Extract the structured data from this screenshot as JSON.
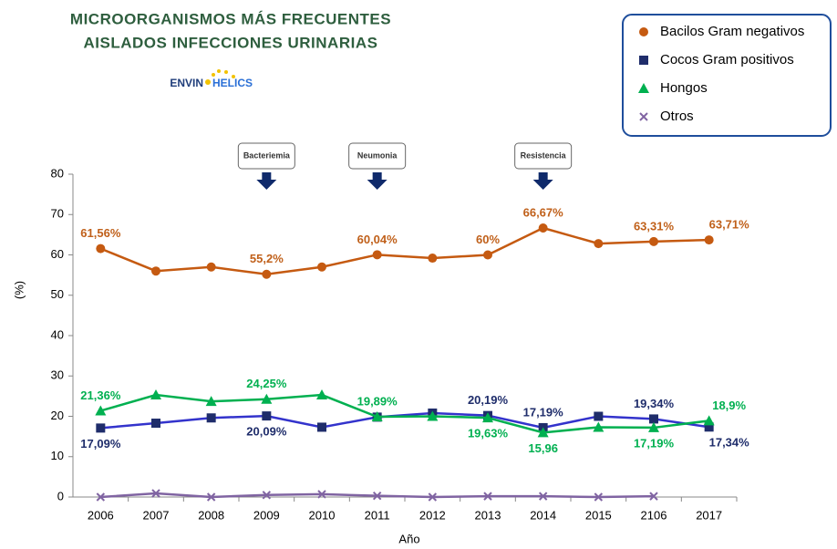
{
  "chart_data": {
    "type": "line",
    "title_lines": [
      "MICROORGANISMOS MÁS FRECUENTES",
      "AISLADOS INFECCIONES URINARIAS"
    ],
    "logo": [
      "ENVIN",
      "HELICS"
    ],
    "x_label": "Año",
    "y_label": "(%)",
    "categories": [
      "2006",
      "2007",
      "2008",
      "2009",
      "2010",
      "2011",
      "2012",
      "2013",
      "2014",
      "2015",
      "2106",
      "2017"
    ],
    "ylim": [
      0,
      80
    ],
    "yticks": [
      0,
      10,
      20,
      30,
      40,
      50,
      60,
      70,
      80
    ],
    "legend": "top-right",
    "annotations": [
      {
        "label": "Bacteriemia",
        "x": "2009"
      },
      {
        "label": "Neumonia",
        "x": "2011"
      },
      {
        "label": "Resistencia",
        "x": "2014"
      }
    ],
    "series": [
      {
        "name": "Bacilos Gram negativos",
        "color": "#c55a11",
        "marker": "circle",
        "values": [
          61.56,
          56,
          57,
          55.2,
          57,
          60.04,
          59.2,
          60,
          66.67,
          62.8,
          63.31,
          63.71
        ],
        "value_labels": [
          "61,56%",
          null,
          null,
          "55,2%",
          null,
          "60,04%",
          null,
          "60%",
          "66,67%",
          null,
          "63,31%",
          "63,71%"
        ]
      },
      {
        "name": "Cocos Gram positivos",
        "color": "#3333cc",
        "marker": "square",
        "values": [
          17.09,
          18.3,
          19.6,
          20.09,
          17.3,
          19.8,
          20.8,
          20.19,
          17.19,
          20,
          19.34,
          17.34
        ],
        "value_labels": [
          "17,09%",
          null,
          null,
          "20,09%",
          null,
          null,
          null,
          "20,19%",
          "17,19%",
          null,
          "19,34%",
          "17,34%"
        ]
      },
      {
        "name": "Hongos",
        "color": "#00b050",
        "marker": "triangle",
        "values": [
          21.36,
          25.3,
          23.7,
          24.25,
          25.3,
          19.89,
          20,
          19.63,
          15.96,
          17.3,
          17.19,
          18.9
        ],
        "value_labels": [
          "21,36%",
          null,
          null,
          "24,25%",
          null,
          "19,89%",
          null,
          "19,63%",
          "15,96",
          null,
          "17,19%",
          "18,9%"
        ]
      },
      {
        "name": "Otros",
        "color": "#8064a2",
        "marker": "x",
        "values": [
          0,
          0.9,
          0,
          0.5,
          0.7,
          0.3,
          0,
          0.2,
          0.2,
          0,
          0.2,
          null
        ]
      }
    ]
  }
}
